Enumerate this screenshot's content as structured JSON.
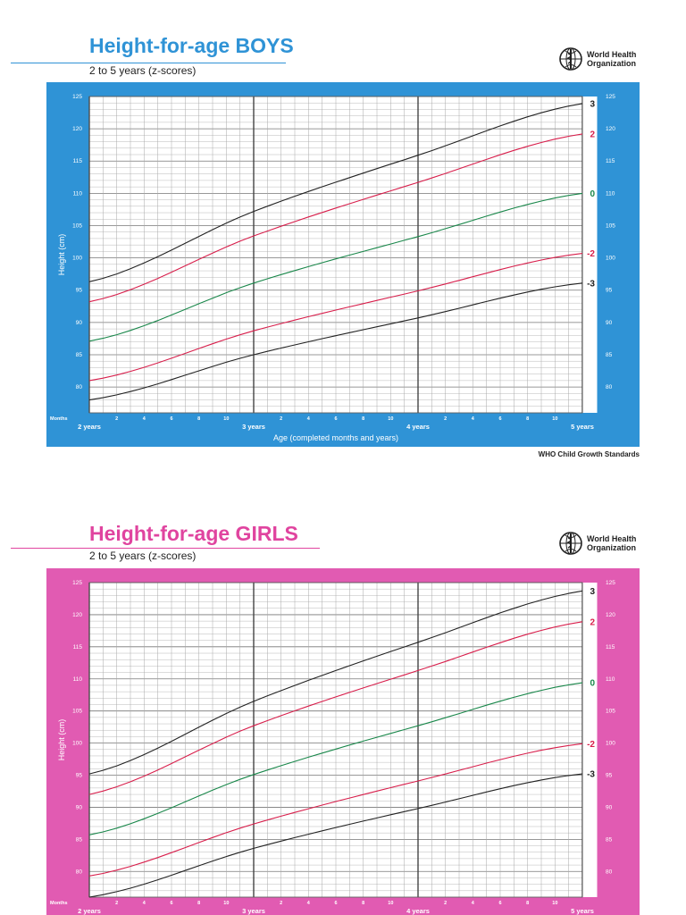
{
  "organization": {
    "line1": "World Health",
    "line2": "Organization",
    "icon": "who-emblem-icon"
  },
  "colors": {
    "boys_bg": "#2f93d6",
    "girls_bg": "#e15bb2",
    "boys_title": "#2f93d6",
    "girls_title": "#e0449f",
    "z3": "#222222",
    "z2": "#d81e4b",
    "z0": "#19874a"
  },
  "boys": {
    "title": "Height-for-age BOYS",
    "subtitle": "2 to 5 years (z-scores)",
    "footer": "WHO Child Growth Standards"
  },
  "girls": {
    "title": "Height-for-age GIRLS",
    "subtitle": "2 to 5 years (z-scores)"
  },
  "chart_data": [
    {
      "type": "line",
      "title": "Height-for-age BOYS",
      "ylabel": "Height (cm)",
      "xlabel": "Age (completed months and years)",
      "months_label": "Months",
      "ylim": [
        76,
        125
      ],
      "y_ticks": [
        80,
        85,
        90,
        95,
        100,
        105,
        110,
        115,
        120,
        125
      ],
      "x_range_months": [
        24,
        60
      ],
      "x_year_labels": [
        "2 years",
        "3 years",
        "4 years",
        "5 years"
      ],
      "x_month_labels": [
        "2",
        "4",
        "6",
        "8",
        "10"
      ],
      "grid": true,
      "series": [
        {
          "name": "3",
          "color": "#222222",
          "points": [
            [
              24,
              96.3
            ],
            [
              36,
              107.2
            ],
            [
              48,
              115.9
            ],
            [
              60,
              123.9
            ]
          ]
        },
        {
          "name": "2",
          "color": "#d81e4b",
          "points": [
            [
              24,
              93.2
            ],
            [
              36,
              103.4
            ],
            [
              48,
              111.7
            ],
            [
              60,
              119.2
            ]
          ]
        },
        {
          "name": "0",
          "color": "#19874a",
          "points": [
            [
              24,
              87.1
            ],
            [
              36,
              96.1
            ],
            [
              48,
              103.3
            ],
            [
              60,
              110.0
            ]
          ]
        },
        {
          "name": "-2",
          "color": "#d81e4b",
          "points": [
            [
              24,
              81.0
            ],
            [
              36,
              88.7
            ],
            [
              48,
              94.9
            ],
            [
              60,
              100.7
            ]
          ]
        },
        {
          "name": "-3",
          "color": "#222222",
          "points": [
            [
              24,
              78.0
            ],
            [
              36,
              85.0
            ],
            [
              48,
              90.7
            ],
            [
              60,
              96.1
            ]
          ]
        }
      ]
    },
    {
      "type": "line",
      "title": "Height-for-age GIRLS",
      "ylabel": "Height (cm)",
      "months_label": "Months",
      "ylim": [
        76,
        125
      ],
      "y_ticks": [
        80,
        85,
        90,
        95,
        100,
        105,
        110,
        115,
        120,
        125
      ],
      "x_range_months": [
        24,
        60
      ],
      "x_year_labels": [
        "2 years",
        "3 years",
        "4 years",
        "5 years"
      ],
      "x_month_labels": [
        "2",
        "4",
        "6",
        "8",
        "10"
      ],
      "grid": true,
      "series": [
        {
          "name": "3",
          "color": "#222222",
          "points": [
            [
              24,
              95.2
            ],
            [
              36,
              106.5
            ],
            [
              48,
              115.7
            ],
            [
              60,
              123.7
            ]
          ]
        },
        {
          "name": "2",
          "color": "#d81e4b",
          "points": [
            [
              24,
              92.0
            ],
            [
              36,
              102.7
            ],
            [
              48,
              111.3
            ],
            [
              60,
              118.9
            ]
          ]
        },
        {
          "name": "0",
          "color": "#19874a",
          "points": [
            [
              24,
              85.7
            ],
            [
              36,
              95.1
            ],
            [
              48,
              102.7
            ],
            [
              60,
              109.4
            ]
          ]
        },
        {
          "name": "-2",
          "color": "#d81e4b",
          "points": [
            [
              24,
              79.3
            ],
            [
              36,
              87.4
            ],
            [
              48,
              94.1
            ],
            [
              60,
              99.9
            ]
          ]
        },
        {
          "name": "-3",
          "color": "#222222",
          "points": [
            [
              24,
              76.0
            ],
            [
              36,
              83.6
            ],
            [
              48,
              89.8
            ],
            [
              60,
              95.2
            ]
          ]
        }
      ]
    }
  ]
}
